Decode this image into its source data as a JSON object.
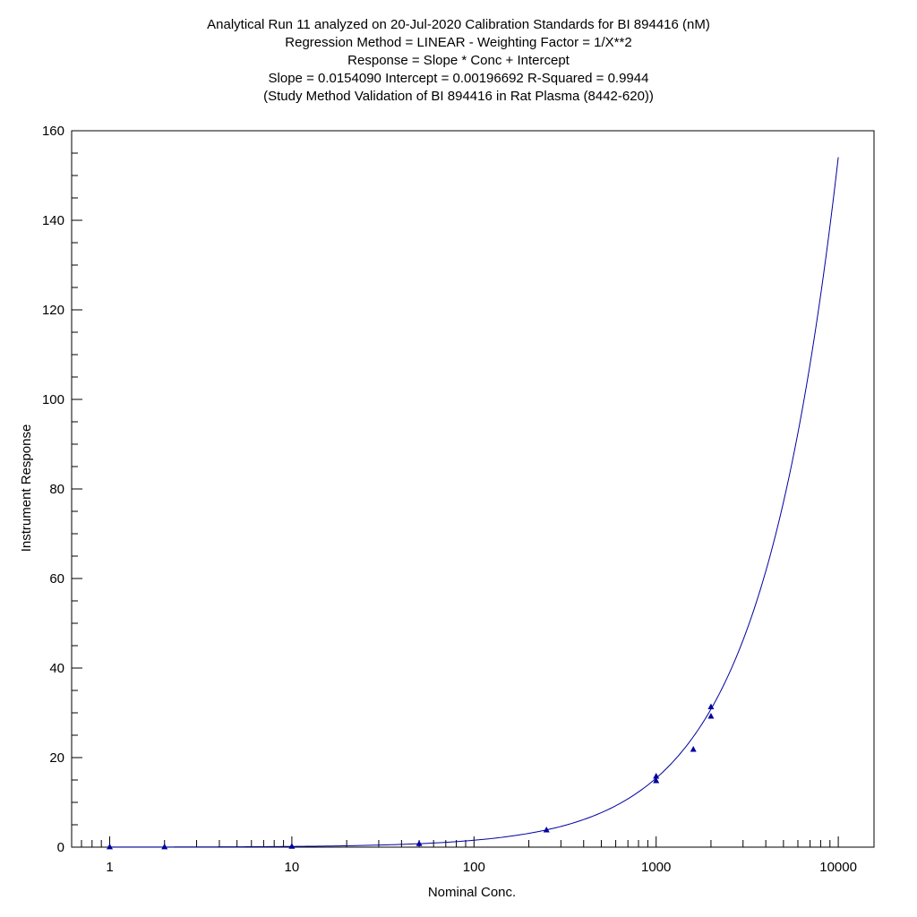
{
  "chart_data": {
    "type": "scatter",
    "title_lines": [
      "Analytical Run 11 analyzed on 20-Jul-2020 Calibration Standards for BI 894416 (nM)",
      "Regression Method = LINEAR - Weighting Factor = 1/X**2",
      "Response = Slope * Conc + Intercept",
      "Slope = 0.0154090 Intercept = 0.00196692 R-Squared = 0.9944",
      "(Study Method Validation of BI 894416 in Rat Plasma (8442-620))"
    ],
    "xlabel": "Nominal Conc.",
    "ylabel": "Instrument Response",
    "x_scale": "log",
    "xlim": [
      0.7,
      12000
    ],
    "ylim": [
      0,
      160
    ],
    "x_ticks": [
      {
        "value": 1,
        "label": "1"
      },
      {
        "value": 10,
        "label": "10"
      },
      {
        "value": 100,
        "label": "100"
      },
      {
        "value": 1000,
        "label": "1000"
      },
      {
        "value": 10000,
        "label": "10000"
      }
    ],
    "y_ticks": [
      {
        "value": 0,
        "label": "0"
      },
      {
        "value": 20,
        "label": "20"
      },
      {
        "value": 40,
        "label": "40"
      },
      {
        "value": 60,
        "label": "60"
      },
      {
        "value": 80,
        "label": "80"
      },
      {
        "value": 100,
        "label": "100"
      },
      {
        "value": 120,
        "label": "120"
      },
      {
        "value": 140,
        "label": "140"
      },
      {
        "value": 160,
        "label": "160"
      }
    ],
    "regression": {
      "slope": 0.015409,
      "intercept": 0.00196692,
      "x_range": [
        1,
        10000
      ]
    },
    "points": [
      {
        "x": 1,
        "y": 0.02
      },
      {
        "x": 2,
        "y": 0.03
      },
      {
        "x": 10,
        "y": 0.15
      },
      {
        "x": 50,
        "y": 0.75
      },
      {
        "x": 250,
        "y": 3.8
      },
      {
        "x": 1000,
        "y": 14.8
      },
      {
        "x": 1000,
        "y": 15.8
      },
      {
        "x": 1600,
        "y": 21.8
      },
      {
        "x": 2000,
        "y": 29.2
      },
      {
        "x": 2000,
        "y": 31.3
      }
    ],
    "colors": {
      "series": "#0000a0",
      "axes": "#000000"
    },
    "grid": false
  }
}
